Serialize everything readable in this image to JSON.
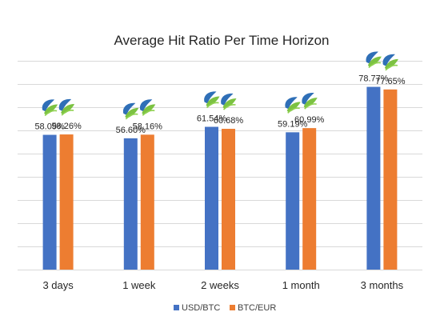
{
  "chart_data": {
    "type": "bar",
    "title": "Average Hit Ratio Per Time Horizon",
    "xlabel": "",
    "ylabel": "",
    "categories": [
      "3 days",
      "1 week",
      "2 weeks",
      "1 month",
      "3 months"
    ],
    "series": [
      {
        "name": "USD/BTC",
        "color": "#4472c4",
        "values": [
          58.09,
          56.6,
          61.54,
          59.19,
          78.77
        ],
        "labels": [
          "58.09%",
          "56.60%",
          "61.54%",
          "59.19%",
          "78.77%"
        ]
      },
      {
        "name": "BTC/EUR",
        "color": "#ed7d31",
        "values": [
          58.26,
          58.16,
          60.68,
          60.99,
          77.65
        ],
        "labels": [
          "58.26%",
          "58.16%",
          "60.68%",
          "60.99%",
          "77.65%"
        ]
      }
    ],
    "ylim": [
      0,
      90
    ],
    "grid": true,
    "legend": "bottom",
    "icon": "leaf-logo-icon"
  }
}
